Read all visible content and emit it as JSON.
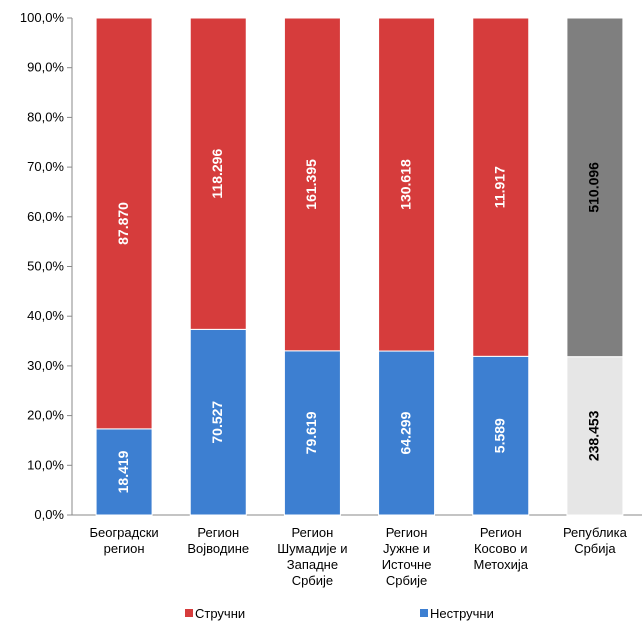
{
  "chart_data": {
    "type": "bar",
    "stacked": "percent",
    "categories": [
      "Београдски\nрегион",
      "Регион\nВојводине",
      "Регион\nШумадије и\nЗападне\nСрбије",
      "Регион\nЈужне и\nИсточне\nСрбије",
      "Регион\nКосово и\nМетохија",
      "Република\nСрбија"
    ],
    "series": [
      {
        "name": "Нестручни",
        "color": "#3d7fd1",
        "colors": [
          "#3d7fd1",
          "#3d7fd1",
          "#3d7fd1",
          "#3d7fd1",
          "#3d7fd1",
          "#e6e6e6"
        ],
        "label_colors": [
          "#ffffff",
          "#ffffff",
          "#ffffff",
          "#ffffff",
          "#ffffff",
          "#000000"
        ],
        "values": [
          18419,
          70527,
          79619,
          64299,
          5589,
          238453
        ],
        "value_labels": [
          "18.419",
          "70.527",
          "79.619",
          "64.299",
          "5.589",
          "238.453"
        ]
      },
      {
        "name": "Стручни",
        "color": "#d63c3c",
        "colors": [
          "#d63c3c",
          "#d63c3c",
          "#d63c3c",
          "#d63c3c",
          "#d63c3c",
          "#7f7f7f"
        ],
        "label_colors": [
          "#ffffff",
          "#ffffff",
          "#ffffff",
          "#ffffff",
          "#ffffff",
          "#000000"
        ],
        "values": [
          87870,
          118296,
          161395,
          130618,
          11917,
          510096
        ],
        "value_labels": [
          "87.870",
          "118.296",
          "161.395",
          "130.618",
          "11.917",
          "510.096"
        ]
      }
    ],
    "ylim": [
      0,
      100
    ],
    "yticks": [
      {
        "value": 0,
        "label": "0,0%"
      },
      {
        "value": 10,
        "label": "10,0%"
      },
      {
        "value": 20,
        "label": "20,0%"
      },
      {
        "value": 30,
        "label": "30,0%"
      },
      {
        "value": 40,
        "label": "40,0%"
      },
      {
        "value": 50,
        "label": "50,0%"
      },
      {
        "value": 60,
        "label": "60,0%"
      },
      {
        "value": 70,
        "label": "70,0%"
      },
      {
        "value": 80,
        "label": "80,0%"
      },
      {
        "value": 90,
        "label": "90,0%"
      },
      {
        "value": 100,
        "label": "100,0%"
      }
    ],
    "legend": "bottom"
  }
}
